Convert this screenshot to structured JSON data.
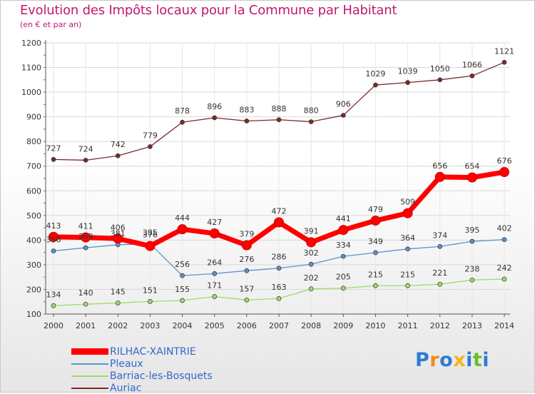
{
  "header": {
    "title": "Evolution des Impôts locaux pour la Commune par Habitant",
    "subtitle": "(en € et par an)"
  },
  "logo": {
    "text": "Proxiti",
    "letters": [
      {
        "ch": "P",
        "color": "#2e7bd6"
      },
      {
        "ch": "r",
        "color": "#f08a1c"
      },
      {
        "ch": "o",
        "color": "#2e7bd6"
      },
      {
        "ch": "x",
        "color": "#f0b71c"
      },
      {
        "ch": "i",
        "color": "#2e7bd6"
      },
      {
        "ch": "t",
        "color": "#6cbf2a"
      },
      {
        "ch": "i",
        "color": "#2e7bd6"
      }
    ]
  },
  "chart_data": {
    "type": "line",
    "title": "Evolution des Impôts locaux pour la Commune par Habitant",
    "subtitle": "(en € et par an)",
    "xlabel": "",
    "ylabel": "",
    "ylim": [
      100,
      1200
    ],
    "yticks": [
      100,
      200,
      300,
      400,
      500,
      600,
      700,
      800,
      900,
      1000,
      1100,
      1200
    ],
    "grid": true,
    "legend_position": "bottom-left",
    "categories": [
      "2000",
      "2001",
      "2002",
      "2003",
      "2004",
      "2005",
      "2006",
      "2007",
      "2008",
      "2009",
      "2010",
      "2011",
      "2012",
      "2013",
      "2014"
    ],
    "series": [
      {
        "name": "Auriac",
        "color": "#7b2a2a",
        "values": [
          727,
          724,
          742,
          779,
          878,
          896,
          883,
          888,
          880,
          906,
          1029,
          1039,
          1050,
          1066,
          1121
        ]
      },
      {
        "name": "Barriac-les-Bosquets",
        "color": "#a3d96b",
        "values": [
          134,
          140,
          145,
          151,
          155,
          171,
          157,
          163,
          202,
          205,
          215,
          215,
          221,
          238,
          242
        ]
      },
      {
        "name": "Pleaux",
        "color": "#5b93c9",
        "values": [
          356,
          369,
          381,
          385,
          256,
          264,
          276,
          286,
          302,
          334,
          349,
          364,
          374,
          395,
          402
        ]
      },
      {
        "name": "RILHAC-XAINTRIE",
        "color": "#ff0000",
        "values": [
          413,
          411,
          406,
          376,
          444,
          427,
          379,
          472,
          391,
          441,
          479,
          509,
          656,
          654,
          676
        ]
      }
    ]
  },
  "legend": {
    "items": [
      {
        "name": "RILHAC-XAINTRIE",
        "color": "#ff0000"
      },
      {
        "name": "Pleaux",
        "color": "#5b93c9"
      },
      {
        "name": "Barriac-les-Bosquets",
        "color": "#a3d96b"
      },
      {
        "name": "Auriac",
        "color": "#7b2a2a"
      }
    ]
  }
}
